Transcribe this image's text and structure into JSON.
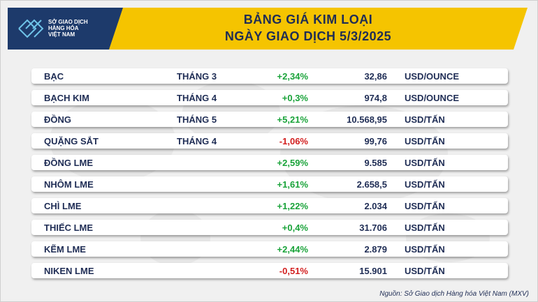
{
  "header": {
    "logo": [
      "SỞ GIAO DỊCH",
      "HÀNG HÓA",
      "VIỆT NAM"
    ],
    "title": [
      "BẢNG GIÁ KIM LOẠI",
      "NGÀY GIAO DỊCH 5/3/2025"
    ]
  },
  "table": {
    "rows": [
      {
        "name": "BẠC",
        "month": "THÁNG 3",
        "change": "+2,34%",
        "price": "32,86",
        "unit": "USD/OUNCE"
      },
      {
        "name": "BẠCH KIM",
        "month": "THÁNG 4",
        "change": "+0,3%",
        "price": "974,8",
        "unit": "USD/OUNCE"
      },
      {
        "name": "ĐỒNG",
        "month": "THÁNG 5",
        "change": "+5,21%",
        "price": "10.568,95",
        "unit": "USD/TẤN"
      },
      {
        "name": "QUẶNG SẮT",
        "month": "THÁNG 4",
        "change": "-1,06%",
        "price": "99,76",
        "unit": "USD/TẤN"
      },
      {
        "name": "ĐỒNG LME",
        "change": "+2,59%",
        "price": "9.585",
        "unit": "USD/TẤN"
      },
      {
        "name": "NHÔM LME",
        "change": "+1,61%",
        "price": "2.658,5",
        "unit": "USD/TẤN"
      },
      {
        "name": "CHÌ LME",
        "change": "+1,22%",
        "price": "2.034",
        "unit": "USD/TẤN"
      },
      {
        "name": "THIẾC LME",
        "change": "+0,4%",
        "price": "31.706",
        "unit": "USD/TẤN"
      },
      {
        "name": "KẼM LME",
        "change": "+2,44%",
        "price": "2.879",
        "unit": "USD/TẤN"
      },
      {
        "name": "NIKEN LME",
        "change": "-0,51%",
        "price": "15.901",
        "unit": "USD/TẤN"
      }
    ]
  },
  "source": "Nguồn: Sở Giao dịch Hàng hóa Việt Nam (MXV)"
}
